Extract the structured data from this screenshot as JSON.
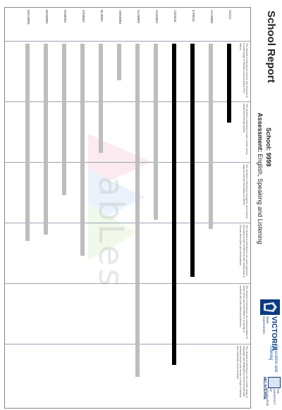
{
  "header": {
    "title": "School Report",
    "school_label": "School:",
    "school_value": "9999",
    "assessment_label": "Assessment:",
    "assessment_value": "English, Speaking and Listening"
  },
  "logos": {
    "victoria_word": "VICTORIA",
    "victoria_state": "State Government",
    "education_text": "Education and Training",
    "university_text": "THE UNIVERSITY OF MELBOURNE",
    "university_short": "MELBOURNE",
    "watermark": "abLes"
  },
  "levels": [
    "The student is learning to receive and respond to a small range of familiar communication from others.",
    "The student is learning to make simple needs, wants and feelings known.",
    "The student is learning to recognise and express ways to convey information to others.",
    "The student is learning to use some grammar (including simple sentences) and vocabulary to include descriptive and observations.",
    "The student is learning to use communication to share ideas and information in a variety of contexts and with different audiences.",
    "The student is learning to use a wider range of language and strategies to communicate with different people and across a range of familiar and unfamiliar social contexts."
  ],
  "students": [
    {
      "id": "111111",
      "level_value": 1.35,
      "color": "#000000"
    },
    {
      "id": "AAA0000",
      "level_value": 3.1,
      "color": "#bdbdbd"
    },
    {
      "id": "ILP0016",
      "level_value": 3.9,
      "color": "#000000"
    },
    {
      "id": "1234444",
      "level_value": 5.35,
      "color": "#000000"
    },
    {
      "id": "ACE0001",
      "level_value": 2.95,
      "color": "#bdbdbd"
    },
    {
      "id": "ALO0002",
      "level_value": 5.55,
      "color": "#bdbdbd"
    },
    {
      "id": "AWA0003",
      "level_value": 0.65,
      "color": "#bdbdbd"
    },
    {
      "id": "BLI0004",
      "level_value": 1.85,
      "color": "#bdbdbd"
    },
    {
      "id": "CRI0002",
      "level_value": 3.55,
      "color": "#bdbdbd"
    },
    {
      "id": "HIN0003",
      "level_value": 2.55,
      "color": "#bdbdbd"
    },
    {
      "id": "MAN0001",
      "level_value": 3.2,
      "color": "#bdbdbd"
    },
    {
      "id": "MOU0003",
      "level_value": 3.3,
      "color": "#bdbdbd"
    }
  ],
  "colors": {
    "bar_black": "#000000",
    "bar_grey": "#bdbdbd",
    "brand_blue": "#0a3a80"
  }
}
